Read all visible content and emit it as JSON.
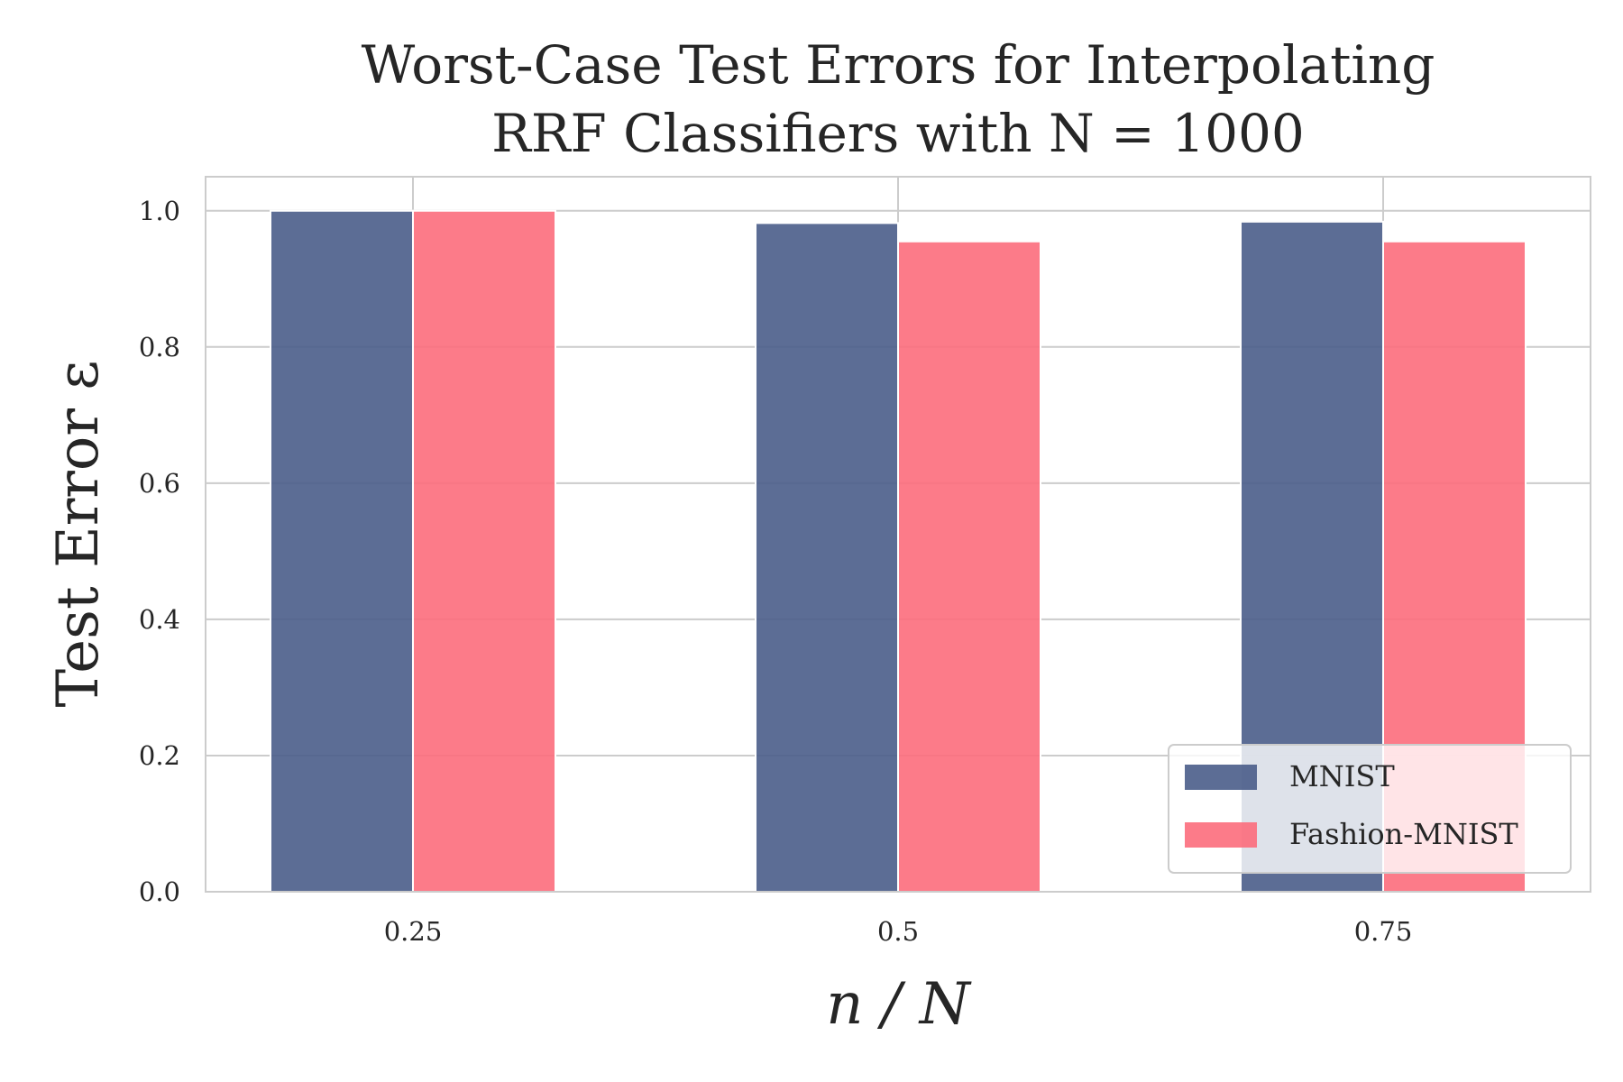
{
  "chart_data": {
    "type": "bar",
    "title_lines": [
      "Worst-Case Test Errors for Interpolating",
      "RRF Classifiers with N = 1000"
    ],
    "xlabel": "n / N",
    "ylabel": "Test Error ε",
    "categories": [
      "0.25",
      "0.5",
      "0.75"
    ],
    "series": [
      {
        "name": "MNIST",
        "color": "#4a5d8a",
        "values": [
          1.0,
          0.982,
          0.984
        ]
      },
      {
        "name": "Fashion-MNIST",
        "color": "#fc6d7c",
        "values": [
          1.0,
          0.955,
          0.955
        ]
      }
    ],
    "ylim": [
      0,
      1.05
    ],
    "yticks": [
      "0.0",
      "0.2",
      "0.4",
      "0.6",
      "0.8",
      "1.0"
    ],
    "grid": true,
    "legend": "lower-right"
  }
}
